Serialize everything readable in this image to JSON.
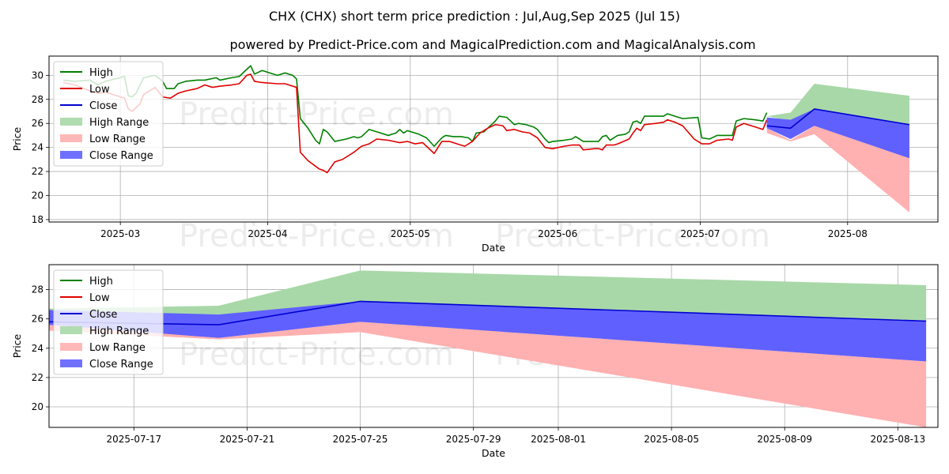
{
  "title": "CHX (CHX) short term price prediction : Jul,Aug,Sep 2025 (Jul 15)",
  "subtitle": "powered by Predict-Price.com and MagicalPrediction.com and MagicalAnalysis.com",
  "watermark": "Predict-Price.com",
  "legend": [
    "High",
    "Low",
    "Close",
    "High Range",
    "Low Range",
    "Close Range"
  ],
  "colors": {
    "high": "#008000",
    "low": "#e00000",
    "close": "#0000d0",
    "high_range": "#a8d8a8",
    "low_range": "#ffb0b0",
    "close_range": "#6060ff"
  },
  "chart_data": [
    {
      "type": "line",
      "xlabel": "Date",
      "ylabel": "Price",
      "xlim": [
        "2025-02-14",
        "2025-08-20"
      ],
      "ylim": [
        17.8,
        31.6
      ],
      "yticks": [
        18,
        20,
        22,
        24,
        26,
        28,
        30
      ],
      "xticks": [
        "2025-03",
        "2025-04",
        "2025-05",
        "2025-06",
        "2025-07",
        "2025-08"
      ],
      "xtick_dates": [
        "2025-03-01",
        "2025-04-01",
        "2025-05-01",
        "2025-06-01",
        "2025-07-01",
        "2025-08-01"
      ],
      "grid": true,
      "legend_position": "top-left",
      "history": {
        "high": [
          [
            "2025-02-17",
            29.6
          ],
          [
            "2025-02-20",
            29.5
          ],
          [
            "2025-02-24",
            29.6
          ],
          [
            "2025-02-26",
            29.2
          ],
          [
            "2025-02-28",
            29.5
          ],
          [
            "2025-03-05",
            29.9
          ],
          [
            "2025-03-06",
            28.3
          ],
          [
            "2025-03-07",
            28.2
          ],
          [
            "2025-03-08",
            28.5
          ],
          [
            "2025-03-10",
            29.8
          ],
          [
            "2025-03-13",
            30.0
          ],
          [
            "2025-03-15",
            29.5
          ],
          [
            "2025-03-16",
            28.9
          ],
          [
            "2025-03-18",
            28.9
          ],
          [
            "2025-03-19",
            29.3
          ],
          [
            "2025-03-21",
            29.5
          ],
          [
            "2025-03-24",
            29.6
          ],
          [
            "2025-03-26",
            29.6
          ],
          [
            "2025-03-29",
            29.8
          ],
          [
            "2025-03-30",
            29.6
          ],
          [
            "2025-04-02",
            29.8
          ],
          [
            "2025-04-04",
            29.9
          ],
          [
            "2025-04-06",
            30.5
          ],
          [
            "2025-04-07",
            30.8
          ],
          [
            "2025-04-08",
            30.1
          ],
          [
            "2025-04-10",
            30.4
          ],
          [
            "2025-04-14",
            30.0
          ],
          [
            "2025-04-16",
            30.2
          ],
          [
            "2025-04-18",
            30.0
          ],
          [
            "2025-04-19",
            29.7
          ],
          [
            "2025-04-20",
            26.4
          ],
          [
            "2025-04-22",
            25.6
          ],
          [
            "2025-04-24",
            24.6
          ],
          [
            "2025-04-25",
            24.3
          ],
          [
            "2025-04-26",
            25.5
          ],
          [
            "2025-04-27",
            25.3
          ],
          [
            "2025-04-29",
            24.5
          ],
          [
            "2025-05-02",
            24.7
          ],
          [
            "2025-05-04",
            24.9
          ],
          [
            "2025-05-05",
            24.8
          ],
          [
            "2025-05-06",
            24.9
          ],
          [
            "2025-05-08",
            25.5
          ],
          [
            "2025-05-10",
            25.3
          ],
          [
            "2025-05-13",
            25.0
          ],
          [
            "2025-05-15",
            25.2
          ],
          [
            "2025-05-16",
            25.5
          ],
          [
            "2025-05-17",
            25.2
          ],
          [
            "2025-05-18",
            25.4
          ],
          [
            "2025-05-21",
            25.1
          ],
          [
            "2025-05-23",
            24.8
          ],
          [
            "2025-05-25",
            24.1
          ],
          [
            "2025-05-27",
            24.8
          ],
          [
            "2025-05-28",
            25.0
          ],
          [
            "2025-05-30",
            24.9
          ],
          [
            "2025-06-01",
            24.9
          ],
          [
            "2025-06-03",
            24.8
          ],
          [
            "2025-06-04",
            24.5
          ],
          [
            "2025-06-05",
            25.2
          ],
          [
            "2025-06-07",
            25.3
          ],
          [
            "2025-06-08",
            25.6
          ],
          [
            "2025-06-10",
            26.2
          ],
          [
            "2025-06-11",
            26.6
          ],
          [
            "2025-06-13",
            26.5
          ],
          [
            "2025-06-14",
            26.2
          ],
          [
            "2025-06-15",
            25.9
          ],
          [
            "2025-06-16",
            26.0
          ],
          [
            "2025-06-18",
            25.9
          ],
          [
            "2025-06-20",
            25.7
          ],
          [
            "2025-06-21",
            25.5
          ],
          [
            "2025-06-23",
            24.7
          ],
          [
            "2025-06-24",
            24.4
          ],
          [
            "2025-06-25",
            24.5
          ],
          [
            "2025-06-28",
            24.6
          ],
          [
            "2025-06-30",
            24.7
          ],
          [
            "2025-07-01",
            24.9
          ],
          [
            "2025-07-03",
            24.5
          ],
          [
            "2025-07-06",
            24.5
          ],
          [
            "2025-07-07",
            24.5
          ],
          [
            "2025-07-08",
            24.9
          ],
          [
            "2025-07-09",
            25.0
          ],
          [
            "2025-07-10",
            24.6
          ],
          [
            "2025-07-11",
            24.8
          ],
          [
            "2025-07-12",
            25.0
          ],
          [
            "2025-07-14",
            25.1
          ],
          [
            "2025-07-15",
            25.3
          ],
          [
            "2025-07-16",
            26.1
          ],
          [
            "2025-07-17",
            26.2
          ],
          [
            "2025-07-18",
            26.0
          ],
          [
            "2025-07-19",
            26.6
          ],
          [
            "2025-07-22",
            26.6
          ],
          [
            "2025-07-24",
            26.6
          ],
          [
            "2025-07-25",
            26.8
          ],
          [
            "2025-07-27",
            26.6
          ],
          [
            "2025-07-29",
            26.4
          ],
          [
            "2025-08-02",
            26.5
          ],
          [
            "2025-08-03",
            24.8
          ],
          [
            "2025-08-05",
            24.7
          ],
          [
            "2025-08-07",
            25.0
          ],
          [
            "2025-08-10",
            25.0
          ],
          [
            "2025-08-11",
            25.0
          ],
          [
            "2025-08-12",
            26.2
          ],
          [
            "2025-08-14",
            26.4
          ],
          [
            "2025-08-17",
            26.3
          ],
          [
            "2025-08-19",
            26.2
          ],
          [
            "2025-08-20",
            26.9
          ]
        ],
        "low": [
          [
            "2025-02-17",
            29.4
          ],
          [
            "2025-02-20",
            29.2
          ],
          [
            "2025-02-24",
            28.7
          ],
          [
            "2025-02-26",
            28.5
          ],
          [
            "2025-02-28",
            28.6
          ],
          [
            "2025-03-05",
            28.1
          ],
          [
            "2025-03-06",
            27.2
          ],
          [
            "2025-03-07",
            27.0
          ],
          [
            "2025-03-09",
            27.6
          ],
          [
            "2025-03-10",
            28.4
          ],
          [
            "2025-03-13",
            29.0
          ],
          [
            "2025-03-15",
            28.2
          ],
          [
            "2025-03-17",
            28.1
          ],
          [
            "2025-03-19",
            28.5
          ],
          [
            "2025-03-21",
            28.7
          ],
          [
            "2025-03-24",
            28.9
          ],
          [
            "2025-03-26",
            29.2
          ],
          [
            "2025-03-28",
            29.0
          ],
          [
            "2025-03-30",
            29.1
          ],
          [
            "2025-04-02",
            29.2
          ],
          [
            "2025-04-04",
            29.3
          ],
          [
            "2025-04-06",
            30.0
          ],
          [
            "2025-04-07",
            30.1
          ],
          [
            "2025-04-08",
            29.5
          ],
          [
            "2025-04-10",
            29.4
          ],
          [
            "2025-04-14",
            29.3
          ],
          [
            "2025-04-16",
            29.3
          ],
          [
            "2025-04-19",
            29.0
          ],
          [
            "2025-04-20",
            23.6
          ],
          [
            "2025-04-22",
            22.9
          ],
          [
            "2025-04-25",
            22.2
          ],
          [
            "2025-04-26",
            22.1
          ],
          [
            "2025-04-27",
            21.9
          ],
          [
            "2025-04-29",
            22.8
          ],
          [
            "2025-05-01",
            23.0
          ],
          [
            "2025-05-04",
            23.6
          ],
          [
            "2025-05-06",
            24.1
          ],
          [
            "2025-05-08",
            24.3
          ],
          [
            "2025-05-10",
            24.7
          ],
          [
            "2025-05-13",
            24.6
          ],
          [
            "2025-05-16",
            24.4
          ],
          [
            "2025-05-18",
            24.5
          ],
          [
            "2025-05-20",
            24.3
          ],
          [
            "2025-05-22",
            24.4
          ],
          [
            "2025-05-25",
            23.5
          ],
          [
            "2025-05-27",
            24.5
          ],
          [
            "2025-05-29",
            24.5
          ],
          [
            "2025-05-31",
            24.3
          ],
          [
            "2025-06-02",
            24.1
          ],
          [
            "2025-06-04",
            24.5
          ],
          [
            "2025-06-06",
            25.2
          ],
          [
            "2025-06-08",
            25.6
          ],
          [
            "2025-06-10",
            25.9
          ],
          [
            "2025-06-12",
            25.8
          ],
          [
            "2025-06-13",
            25.4
          ],
          [
            "2025-06-15",
            25.5
          ],
          [
            "2025-06-17",
            25.3
          ],
          [
            "2025-06-19",
            25.2
          ],
          [
            "2025-06-21",
            24.8
          ],
          [
            "2025-06-23",
            24.0
          ],
          [
            "2025-06-25",
            23.9
          ],
          [
            "2025-06-28",
            24.1
          ],
          [
            "2025-06-30",
            24.2
          ],
          [
            "2025-07-02",
            24.2
          ],
          [
            "2025-07-03",
            23.8
          ],
          [
            "2025-07-06",
            23.9
          ],
          [
            "2025-07-07",
            23.9
          ],
          [
            "2025-07-08",
            23.8
          ],
          [
            "2025-07-09",
            24.2
          ],
          [
            "2025-07-11",
            24.2
          ],
          [
            "2025-07-12",
            24.3
          ],
          [
            "2025-07-15",
            24.7
          ],
          [
            "2025-07-16",
            25.2
          ],
          [
            "2025-07-17",
            25.6
          ],
          [
            "2025-07-18",
            25.4
          ],
          [
            "2025-07-19",
            25.9
          ],
          [
            "2025-07-22",
            26.0
          ],
          [
            "2025-07-24",
            26.1
          ],
          [
            "2025-07-25",
            26.3
          ],
          [
            "2025-07-27",
            26.1
          ],
          [
            "2025-07-29",
            25.8
          ],
          [
            "2025-08-01",
            24.7
          ],
          [
            "2025-08-03",
            24.3
          ],
          [
            "2025-08-05",
            24.3
          ],
          [
            "2025-08-07",
            24.6
          ],
          [
            "2025-08-10",
            24.7
          ],
          [
            "2025-08-11",
            24.6
          ],
          [
            "2025-08-12",
            25.7
          ],
          [
            "2025-08-14",
            26.0
          ],
          [
            "2025-08-17",
            25.7
          ],
          [
            "2025-08-19",
            25.5
          ],
          [
            "2025-08-20",
            26.3
          ]
        ]
      },
      "history_end_note": "visible history continues on shifted timeline below",
      "forecast_dates": [
        "2025-07-15",
        "2025-07-20",
        "2025-07-25",
        "2025-08-14"
      ],
      "forecast": {
        "high": [
          26.6,
          26.9,
          29.3,
          28.3
        ],
        "high_range_low": [
          26.6,
          26.2,
          27.2,
          25.9
        ],
        "low": [
          25.6,
          24.6,
          25.8,
          23.1
        ],
        "low_range_low": [
          25.2,
          24.5,
          25.1,
          18.6
        ],
        "close": [
          25.8,
          25.6,
          27.2,
          25.9
        ],
        "close_high": [
          26.5,
          26.3,
          27.2,
          25.9
        ],
        "close_low": [
          25.6,
          24.7,
          25.8,
          23.1
        ]
      }
    },
    {
      "type": "area",
      "xlabel": "Date",
      "ylabel": "Price",
      "xlim": [
        "2025-07-14",
        "2025-08-14 10:00"
      ],
      "ylim": [
        18.6,
        29.7
      ],
      "yticks": [
        20,
        22,
        24,
        26,
        28
      ],
      "xticks": [
        "2025-07-17",
        "2025-07-21",
        "2025-07-25",
        "2025-07-29",
        "2025-08-01",
        "2025-08-05",
        "2025-08-09",
        "2025-08-13"
      ],
      "grid": true,
      "legend_position": "top-left",
      "dates": [
        "2025-07-14",
        "2025-07-20",
        "2025-07-25",
        "2025-08-14"
      ],
      "high": [
        26.7,
        26.9,
        29.3,
        28.3
      ],
      "high_base": [
        26.5,
        26.2,
        27.2,
        25.9
      ],
      "low_top": [
        25.7,
        24.7,
        25.8,
        23.1
      ],
      "low_bottom": [
        25.2,
        24.6,
        25.1,
        18.6
      ],
      "close": [
        25.8,
        25.6,
        27.2,
        25.85
      ],
      "close_top": [
        26.6,
        26.3,
        27.2,
        25.85
      ],
      "close_bottom": [
        25.6,
        24.7,
        25.8,
        23.1
      ]
    }
  ]
}
